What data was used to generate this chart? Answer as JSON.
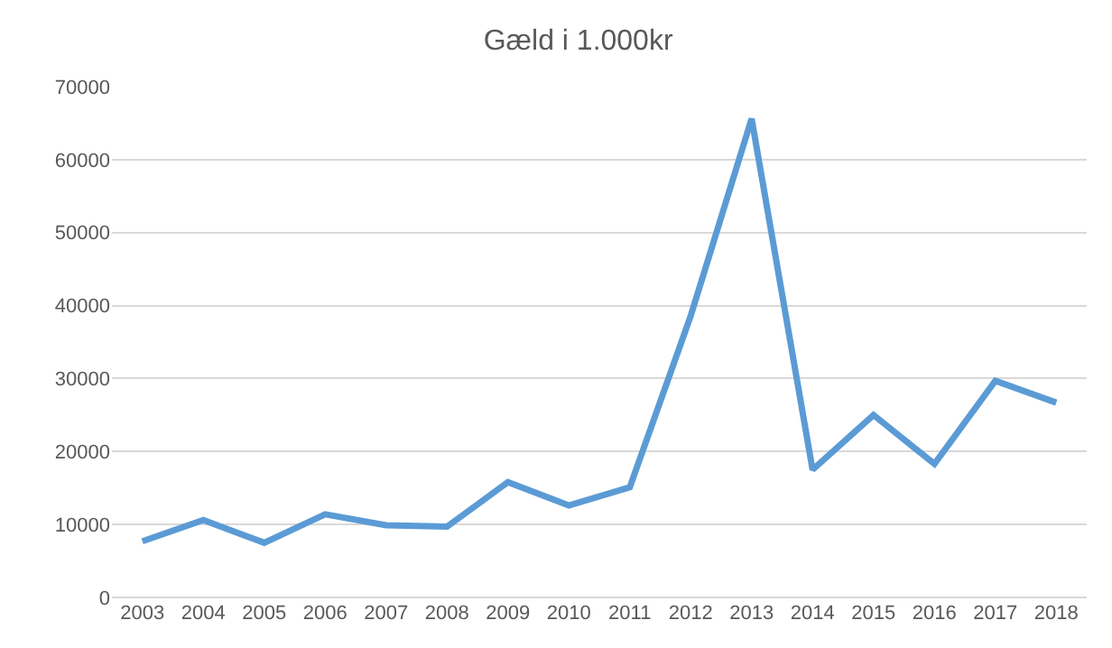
{
  "chart_data": {
    "type": "line",
    "title": "Gæld i 1.000kr",
    "categories": [
      "2003",
      "2004",
      "2005",
      "2006",
      "2007",
      "2008",
      "2009",
      "2010",
      "2011",
      "2012",
      "2013",
      "2014",
      "2015",
      "2016",
      "2017",
      "2018"
    ],
    "series": [
      {
        "color": "#5b9bd5",
        "values": [
          7700,
          10600,
          7500,
          11400,
          9900,
          9700,
          15800,
          12600,
          15100,
          38600,
          65600,
          17500,
          25000,
          18300,
          29700,
          26700
        ]
      }
    ],
    "ylim": [
      0,
      70000
    ],
    "yticks": [
      0,
      10000,
      20000,
      30000,
      40000,
      50000,
      60000,
      70000
    ],
    "grid": "y",
    "marker": "none",
    "line_style": "solid"
  }
}
